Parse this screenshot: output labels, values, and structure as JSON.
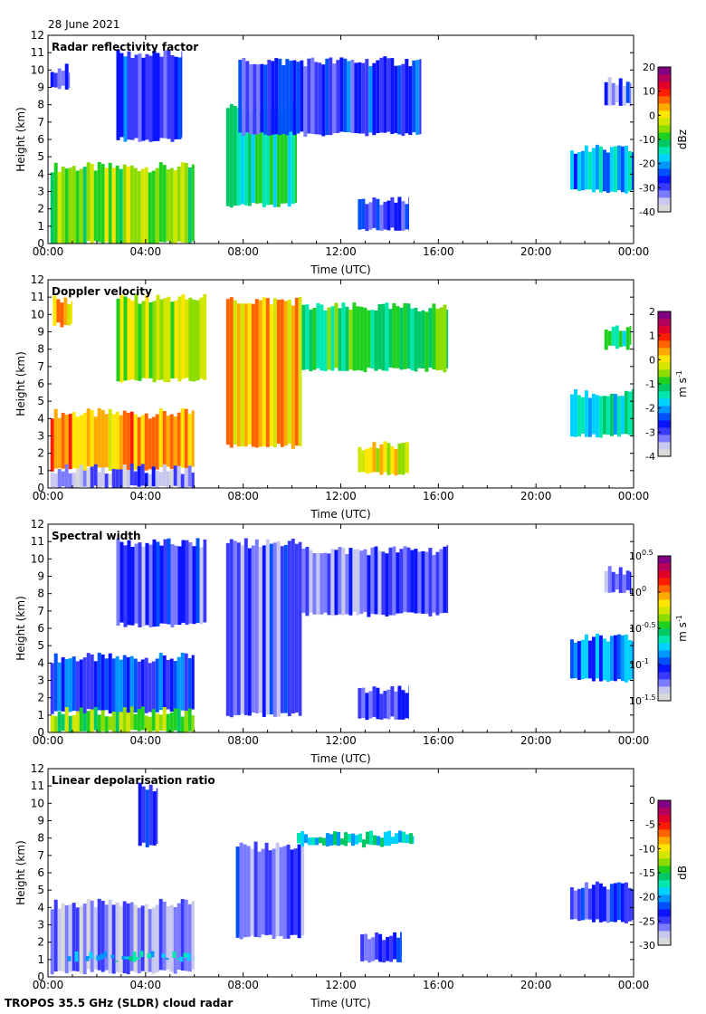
{
  "header": {
    "date": "28 June 2021"
  },
  "footer": {
    "instrument": "TROPOS 35.5 GHz (SLDR) cloud radar"
  },
  "colors": {
    "jet": [
      "#d9d9d9",
      "#c8c8ee",
      "#7b7bff",
      "#3a3aff",
      "#0a14ff",
      "#0050ff",
      "#0096ff",
      "#00d2ff",
      "#00e8b0",
      "#00c864",
      "#20d020",
      "#8cdc00",
      "#d2e600",
      "#ffe600",
      "#ffaa00",
      "#ff6400",
      "#ff1e00",
      "#e0002a",
      "#b4005a",
      "#820082"
    ]
  },
  "chart_data": [
    {
      "id": "reflectivity",
      "type": "heatmap",
      "title": "Radar reflectivity factor",
      "xlabel": "Time (UTC)",
      "ylabel": "Height (km)",
      "xlim_hours": [
        0,
        24
      ],
      "ylim": [
        0,
        12
      ],
      "x_tick_labels": [
        "00:00",
        "04:00",
        "08:00",
        "12:00",
        "16:00",
        "20:00",
        "00:00"
      ],
      "y_ticks": [
        "0",
        "1",
        "2",
        "3",
        "4",
        "5",
        "6",
        "7",
        "8",
        "9",
        "10",
        "11",
        "12"
      ],
      "colorbar": {
        "label": "dBz",
        "min": -40,
        "max": 20,
        "ticks": [
          "-40",
          "-30",
          "-20",
          "-10",
          "0",
          "10",
          "20"
        ]
      },
      "regions": [
        {
          "t": [
            0.1,
            6.0
          ],
          "h": [
            0.0,
            4.4
          ],
          "value": -5
        },
        {
          "t": [
            0.1,
            0.9
          ],
          "h": [
            9.0,
            10.1
          ],
          "value": -30
        },
        {
          "t": [
            2.8,
            5.5
          ],
          "h": [
            6.0,
            10.9
          ],
          "value": -27
        },
        {
          "t": [
            7.3,
            10.2
          ],
          "h": [
            2.2,
            7.8
          ],
          "value": -12
        },
        {
          "t": [
            7.8,
            15.3
          ],
          "h": [
            6.3,
            10.5
          ],
          "value": -27
        },
        {
          "t": [
            12.7,
            14.8
          ],
          "h": [
            0.8,
            2.4
          ],
          "value": -28
        },
        {
          "t": [
            21.4,
            24.0
          ],
          "h": [
            3.0,
            5.4
          ],
          "value": -20
        },
        {
          "t": [
            22.8,
            23.9
          ],
          "h": [
            8.0,
            9.3
          ],
          "value": -30
        }
      ]
    },
    {
      "id": "doppler",
      "type": "heatmap",
      "title": "Doppler velocity",
      "xlabel": "Time (UTC)",
      "ylabel": "Height (km)",
      "xlim_hours": [
        0,
        24
      ],
      "ylim": [
        0,
        12
      ],
      "x_tick_labels": [
        "00:00",
        "04:00",
        "08:00",
        "12:00",
        "16:00",
        "20:00",
        "00:00"
      ],
      "y_ticks": [
        "0",
        "1",
        "2",
        "3",
        "4",
        "5",
        "6",
        "7",
        "8",
        "9",
        "10",
        "11",
        "12"
      ],
      "colorbar": {
        "label": "m s-1",
        "min": -4,
        "max": 2,
        "ticks": [
          "-4",
          "-3",
          "-2",
          "-1",
          "0",
          "1",
          "2"
        ]
      },
      "regions": [
        {
          "t": [
            0.1,
            6.0
          ],
          "h": [
            1.1,
            4.3
          ],
          "value": 0.4
        },
        {
          "t": [
            0.1,
            6.0
          ],
          "h": [
            0.0,
            1.1
          ],
          "value": -3.3
        },
        {
          "t": [
            0.2,
            1.0
          ],
          "h": [
            9.4,
            10.8
          ],
          "value": 0.2
        },
        {
          "t": [
            2.8,
            6.5
          ],
          "h": [
            6.2,
            10.9
          ],
          "value": -0.4
        },
        {
          "t": [
            7.3,
            10.4
          ],
          "h": [
            2.4,
            10.8
          ],
          "value": 0.2
        },
        {
          "t": [
            10.4,
            16.4
          ],
          "h": [
            6.8,
            10.4
          ],
          "value": -1.0
        },
        {
          "t": [
            12.7,
            14.8
          ],
          "h": [
            0.8,
            2.4
          ],
          "value": 0.0
        },
        {
          "t": [
            21.4,
            24.0
          ],
          "h": [
            3.0,
            5.4
          ],
          "value": -1.5
        },
        {
          "t": [
            22.8,
            23.9
          ],
          "h": [
            8.1,
            9.3
          ],
          "value": -1.2
        }
      ]
    },
    {
      "id": "width",
      "type": "heatmap",
      "title": "Spectral width",
      "xlabel": "Time (UTC)",
      "ylabel": "Height (km)",
      "xlim_hours": [
        0,
        24
      ],
      "ylim": [
        0,
        12
      ],
      "x_tick_labels": [
        "00:00",
        "04:00",
        "08:00",
        "12:00",
        "16:00",
        "20:00",
        "00:00"
      ],
      "y_ticks": [
        "0",
        "1",
        "2",
        "3",
        "4",
        "5",
        "6",
        "7",
        "8",
        "9",
        "10",
        "11",
        "12"
      ],
      "colorbar": {
        "label": "m s-1",
        "min": -1.5,
        "max": 0.5,
        "ticks": [
          "10-1.5",
          "10-1",
          "10-0.5",
          "100",
          "100.5"
        ]
      },
      "regions": [
        {
          "t": [
            0.1,
            6.0
          ],
          "h": [
            1.2,
            4.3
          ],
          "value": -1.0
        },
        {
          "t": [
            0.1,
            6.0
          ],
          "h": [
            0.0,
            1.2
          ],
          "value": -0.4
        },
        {
          "t": [
            2.8,
            6.5
          ],
          "h": [
            6.2,
            10.9
          ],
          "value": -1.15
        },
        {
          "t": [
            7.3,
            10.4
          ],
          "h": [
            1.0,
            10.9
          ],
          "value": -1.15
        },
        {
          "t": [
            10.4,
            16.4
          ],
          "h": [
            6.8,
            10.5
          ],
          "value": -1.2
        },
        {
          "t": [
            12.7,
            14.8
          ],
          "h": [
            0.8,
            2.4
          ],
          "value": -1.1
        },
        {
          "t": [
            21.4,
            24.0
          ],
          "h": [
            3.0,
            5.4
          ],
          "value": -0.9
        },
        {
          "t": [
            22.8,
            23.9
          ],
          "h": [
            8.1,
            9.3
          ],
          "value": -1.2
        }
      ]
    },
    {
      "id": "ldr",
      "type": "heatmap",
      "title": "Linear depolarisation ratio",
      "xlabel": "Time (UTC)",
      "ylabel": "Height (km)",
      "xlim_hours": [
        0,
        24
      ],
      "ylim": [
        0,
        12
      ],
      "x_tick_labels": [
        "00:00",
        "04:00",
        "08:00",
        "12:00",
        "16:00",
        "20:00",
        "00:00"
      ],
      "y_ticks": [
        "0",
        "1",
        "2",
        "3",
        "4",
        "5",
        "6",
        "7",
        "8",
        "9",
        "10",
        "11",
        "12"
      ],
      "colorbar": {
        "label": "dB",
        "min": -30,
        "max": 0,
        "ticks": [
          "-30",
          "-25",
          "-20",
          "-15",
          "-10",
          "-5",
          "0"
        ]
      },
      "regions": [
        {
          "t": [
            0.1,
            6.0
          ],
          "h": [
            0.3,
            4.2
          ],
          "value": -27
        },
        {
          "t": [
            0.5,
            6.0
          ],
          "h": [
            1.0,
            1.2
          ],
          "value": -18
        },
        {
          "t": [
            3.7,
            4.5
          ],
          "h": [
            7.6,
            10.9
          ],
          "value": -23
        },
        {
          "t": [
            7.7,
            10.5
          ],
          "h": [
            2.3,
            7.5
          ],
          "value": -25
        },
        {
          "t": [
            10.2,
            15.0
          ],
          "h": [
            7.6,
            8.2
          ],
          "value": -18
        },
        {
          "t": [
            12.8,
            14.5
          ],
          "h": [
            0.9,
            2.3
          ],
          "value": -24
        },
        {
          "t": [
            21.4,
            24.0
          ],
          "h": [
            3.2,
            5.2
          ],
          "value": -24
        }
      ]
    }
  ]
}
